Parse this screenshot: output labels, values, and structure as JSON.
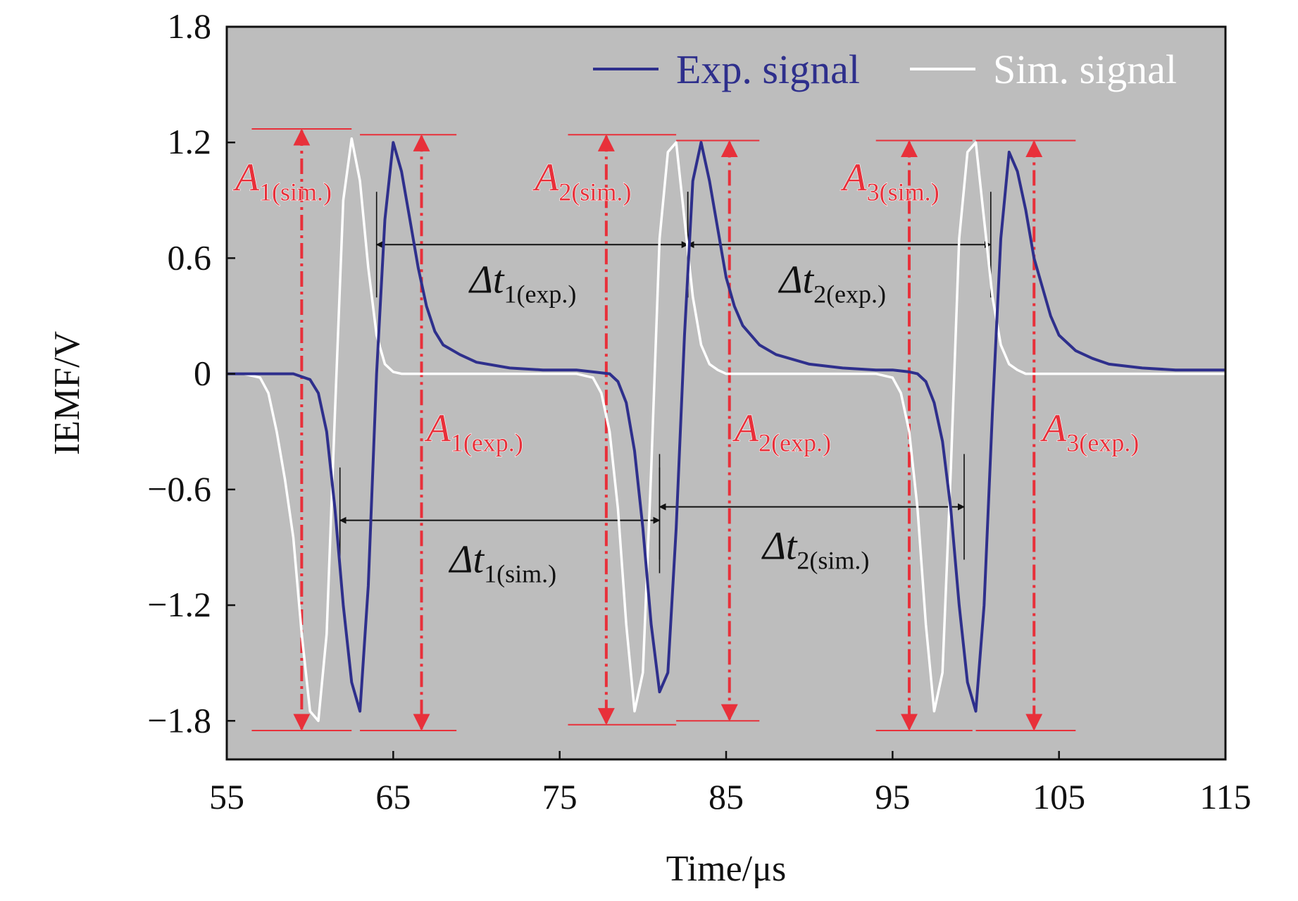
{
  "chart_data": {
    "type": "line",
    "xlabel": "Time/μs",
    "ylabel": "IEMF/V",
    "xlim": [
      55,
      115
    ],
    "ylim": [
      -2.0,
      1.8
    ],
    "xticks": [
      "55",
      "65",
      "75",
      "85",
      "95",
      "105",
      "115"
    ],
    "yticks": [
      "1.8",
      "1.2",
      "0.6",
      "0",
      "−0.6",
      "−1.2",
      "−1.8"
    ],
    "grid": false,
    "legend_position": "top-right",
    "colors": {
      "plot_background": "#bdbdbd",
      "exp_signal": "#2e2f8c",
      "sim_signal": "#ffffff",
      "annotation_red": "#e8303a",
      "dimension_black": "#111111"
    },
    "series": [
      {
        "name": "Exp. signal",
        "x": [
          55,
          56,
          57,
          58,
          59,
          60,
          60.5,
          61,
          61.5,
          62,
          62.5,
          63,
          63.5,
          64,
          64.5,
          65,
          65.5,
          66,
          66.5,
          67,
          67.5,
          68,
          69,
          70,
          72,
          74,
          76,
          77,
          78,
          78.5,
          79,
          79.5,
          80,
          80.5,
          81,
          81.5,
          82,
          82.5,
          83,
          83.5,
          84,
          84.5,
          85,
          85.5,
          86,
          87,
          88,
          90,
          92,
          94,
          95,
          96,
          96.5,
          97,
          97.5,
          98,
          98.5,
          99,
          99.5,
          100,
          100.5,
          101,
          101.5,
          102,
          102.5,
          103,
          103.5,
          104,
          104.5,
          105,
          106,
          107,
          108,
          110,
          112,
          114,
          115
        ],
        "y": [
          0.0,
          0.0,
          0.0,
          0.0,
          0.0,
          -0.03,
          -0.1,
          -0.3,
          -0.7,
          -1.2,
          -1.6,
          -1.75,
          -1.1,
          0.0,
          0.8,
          1.2,
          1.05,
          0.8,
          0.55,
          0.35,
          0.22,
          0.15,
          0.1,
          0.06,
          0.03,
          0.02,
          0.02,
          0.01,
          0.0,
          -0.04,
          -0.15,
          -0.4,
          -0.8,
          -1.3,
          -1.65,
          -1.55,
          -0.8,
          0.2,
          1.0,
          1.2,
          1.0,
          0.75,
          0.5,
          0.35,
          0.25,
          0.15,
          0.1,
          0.05,
          0.03,
          0.02,
          0.02,
          0.01,
          0.0,
          -0.04,
          -0.15,
          -0.35,
          -0.7,
          -1.2,
          -1.6,
          -1.75,
          -1.2,
          -0.2,
          0.7,
          1.15,
          1.05,
          0.85,
          0.6,
          0.45,
          0.3,
          0.2,
          0.12,
          0.08,
          0.05,
          0.03,
          0.02,
          0.02,
          0.02
        ]
      },
      {
        "name": "Sim. signal",
        "x": [
          55,
          56,
          57,
          57.5,
          58,
          58.5,
          59,
          59.5,
          60,
          60.5,
          61,
          61.5,
          62,
          62.5,
          63,
          63.5,
          64,
          64.5,
          65,
          65.5,
          66,
          67,
          70,
          74,
          76,
          77,
          77.5,
          78,
          78.5,
          79,
          79.5,
          80,
          80.5,
          81,
          81.5,
          82,
          82.5,
          83,
          83.5,
          84,
          84.5,
          85,
          86,
          90,
          94,
          95,
          95.5,
          96,
          96.5,
          97,
          97.5,
          98,
          98.5,
          99,
          99.5,
          100,
          100.5,
          101,
          101.5,
          102,
          102.5,
          103,
          104,
          108,
          112,
          115
        ],
        "y": [
          0.0,
          0.0,
          -0.02,
          -0.1,
          -0.3,
          -0.55,
          -0.85,
          -1.35,
          -1.75,
          -1.8,
          -1.35,
          -0.2,
          0.9,
          1.22,
          1.0,
          0.55,
          0.2,
          0.05,
          0.01,
          0.0,
          0.0,
          0.0,
          0.0,
          0.0,
          0.0,
          -0.02,
          -0.1,
          -0.3,
          -0.7,
          -1.3,
          -1.75,
          -1.55,
          -0.5,
          0.7,
          1.15,
          1.2,
          0.8,
          0.4,
          0.15,
          0.05,
          0.02,
          0.0,
          0.0,
          0.0,
          0.0,
          -0.02,
          -0.1,
          -0.3,
          -0.7,
          -1.3,
          -1.75,
          -1.55,
          -0.5,
          0.7,
          1.15,
          1.2,
          0.8,
          0.4,
          0.15,
          0.05,
          0.02,
          0.0,
          0.0,
          0.0,
          0.0,
          0.0
        ]
      }
    ],
    "legend": [
      "Exp. signal",
      "Sim. signal"
    ],
    "annotations": {
      "amplitudes": [
        {
          "main": "A",
          "sub": "1(sim.)",
          "x": 59.5,
          "y_top": 1.27,
          "y_bottom": -1.85,
          "label_x": 55.5,
          "label_y": 0.95,
          "cap_x1": 56.5,
          "cap_x2": 62.5
        },
        {
          "main": "A",
          "sub": "1(exp.)",
          "x": 66.7,
          "y_top": 1.24,
          "y_bottom": -1.85,
          "label_x": 67.0,
          "label_y": -0.35,
          "cap_x1": 63.0,
          "cap_x2": 68.8
        },
        {
          "main": "A",
          "sub": "2(sim.)",
          "x": 77.8,
          "y_top": 1.24,
          "y_bottom": -1.82,
          "label_x": 73.5,
          "label_y": 0.95,
          "cap_x1": 75.5,
          "cap_x2": 82.0
        },
        {
          "main": "A",
          "sub": "2(exp.)",
          "x": 85.2,
          "y_top": 1.21,
          "y_bottom": -1.8,
          "label_x": 85.5,
          "label_y": -0.35,
          "cap_x1": 82.0,
          "cap_x2": 87.0
        },
        {
          "main": "A",
          "sub": "3(sim.)",
          "x": 96.0,
          "y_top": 1.21,
          "y_bottom": -1.85,
          "label_x": 92.0,
          "label_y": 0.95,
          "cap_x1": 94.0,
          "cap_x2": 99.8
        },
        {
          "main": "A",
          "sub": "3(exp.)",
          "x": 103.5,
          "y_top": 1.21,
          "y_bottom": -1.85,
          "label_x": 104.0,
          "label_y": -0.35,
          "cap_x1": 100.0,
          "cap_x2": 106.0
        }
      ],
      "intervals": [
        {
          "main": "Δt",
          "sub": "1(exp.)",
          "x1": 64.0,
          "x2": 82.7,
          "y": 0.67,
          "label_x": 69.6,
          "label_y": 0.42
        },
        {
          "main": "Δt",
          "sub": "2(exp.)",
          "x1": 82.7,
          "x2": 100.9,
          "y": 0.67,
          "label_x": 88.2,
          "label_y": 0.42
        },
        {
          "main": "Δt",
          "sub": "1(sim.)",
          "x1": 61.8,
          "x2": 81.0,
          "y": -0.76,
          "label_x": 68.4,
          "label_y": -1.03
        },
        {
          "main": "Δt",
          "sub": "2(sim.)",
          "x1": 81.0,
          "x2": 99.3,
          "y": -0.69,
          "label_x": 87.2,
          "label_y": -0.96
        }
      ]
    }
  }
}
